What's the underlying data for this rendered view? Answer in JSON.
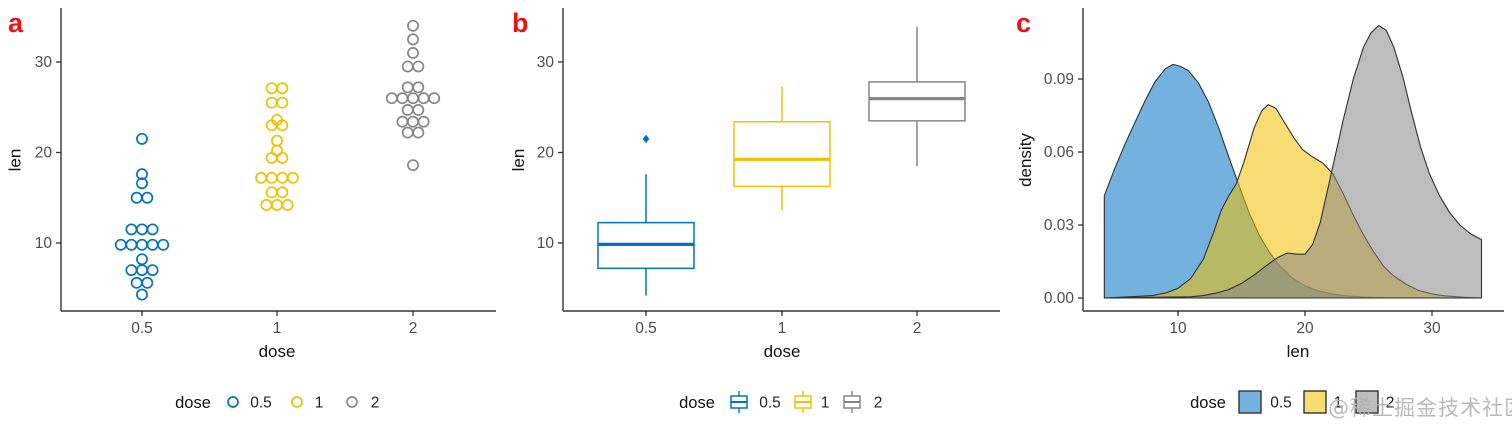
{
  "figure": {
    "watermark": "@稀土掘金技术社区",
    "label_color": "#ee1111",
    "axis_line_color": "#333333",
    "tick_label_color": "#4d4d4d",
    "axis_title_color": "#111111"
  },
  "chart_data": [
    {
      "panel_label": "a",
      "type": "dotplot",
      "xlabel": "dose",
      "ylabel": "len",
      "x_categories": [
        "0.5",
        "1",
        "2"
      ],
      "y_ticks": [
        {
          "v": 10,
          "t": "10"
        },
        {
          "v": 20,
          "t": "20"
        },
        {
          "v": 30,
          "t": "30"
        }
      ],
      "ylim": [
        2.5,
        36
      ],
      "legend": {
        "title": "dose",
        "position": "bottom",
        "items": [
          {
            "label": "0.5",
            "color": "#0073C2"
          },
          {
            "label": "1",
            "color": "#EFC000"
          },
          {
            "label": "2",
            "color": "#868686"
          }
        ]
      },
      "series": [
        {
          "name": "0.5",
          "color": "#0073C2",
          "stacks": [
            [
              21.5,
              1
            ],
            [
              17.6,
              1
            ],
            [
              16.6,
              1
            ],
            [
              15.0,
              2
            ],
            [
              11.5,
              3
            ],
            [
              9.8,
              5
            ],
            [
              8.2,
              1
            ],
            [
              7.0,
              3
            ],
            [
              5.6,
              2
            ],
            [
              4.3,
              1
            ]
          ]
        },
        {
          "name": "1",
          "color": "#EFC000",
          "stacks": [
            [
              27.1,
              2
            ],
            [
              25.5,
              2
            ],
            [
              23.6,
              1
            ],
            [
              23.0,
              2
            ],
            [
              21.3,
              1
            ],
            [
              20.2,
              1
            ],
            [
              19.4,
              2
            ],
            [
              17.2,
              4
            ],
            [
              15.6,
              2
            ],
            [
              14.2,
              3
            ]
          ]
        },
        {
          "name": "2",
          "color": "#868686",
          "stacks": [
            [
              34.0,
              1
            ],
            [
              32.5,
              1
            ],
            [
              31.0,
              1
            ],
            [
              29.5,
              2
            ],
            [
              27.2,
              2
            ],
            [
              26.0,
              5
            ],
            [
              24.7,
              2
            ],
            [
              23.4,
              3
            ],
            [
              22.2,
              2
            ],
            [
              18.6,
              1
            ]
          ]
        }
      ]
    },
    {
      "panel_label": "b",
      "type": "boxplot",
      "xlabel": "dose",
      "ylabel": "len",
      "x_categories": [
        "0.5",
        "1",
        "2"
      ],
      "y_ticks": [
        {
          "v": 10,
          "t": "10"
        },
        {
          "v": 20,
          "t": "20"
        },
        {
          "v": 30,
          "t": "30"
        }
      ],
      "ylim": [
        2.5,
        36
      ],
      "legend": {
        "title": "dose",
        "position": "bottom",
        "items": [
          {
            "label": "0.5",
            "color": "#0073C2"
          },
          {
            "label": "1",
            "color": "#EFC000"
          },
          {
            "label": "2",
            "color": "#868686"
          }
        ]
      },
      "series": [
        {
          "name": "0.5",
          "color": "#0073C2",
          "whisker_low": 4.2,
          "q1": 7.2,
          "median": 9.85,
          "q3": 12.25,
          "whisker_high": 17.6,
          "outliers": [
            21.5
          ]
        },
        {
          "name": "1",
          "color": "#EFC000",
          "whisker_low": 13.6,
          "q1": 16.25,
          "median": 19.25,
          "q3": 23.4,
          "whisker_high": 27.3,
          "outliers": []
        },
        {
          "name": "2",
          "color": "#868686",
          "whisker_low": 18.5,
          "q1": 23.5,
          "median": 25.95,
          "q3": 27.8,
          "whisker_high": 33.9,
          "outliers": []
        }
      ]
    },
    {
      "panel_label": "c",
      "type": "density",
      "xlabel": "len",
      "ylabel": "density",
      "x_ticks": [
        {
          "v": 10,
          "t": "10"
        },
        {
          "v": 20,
          "t": "20"
        },
        {
          "v": 30,
          "t": "30"
        }
      ],
      "y_ticks": [
        {
          "v": 0,
          "t": "0.00"
        },
        {
          "v": 0.03,
          "t": "0.03"
        },
        {
          "v": 0.06,
          "t": "0.06"
        },
        {
          "v": 0.09,
          "t": "0.09"
        }
      ],
      "xlim": [
        4.2,
        33.9
      ],
      "ylim": [
        0,
        0.118
      ],
      "fill_opacity": 0.55,
      "legend": {
        "title": "dose",
        "position": "bottom",
        "items": [
          {
            "label": "0.5",
            "color": "#0073C2"
          },
          {
            "label": "1",
            "color": "#EFC000"
          },
          {
            "label": "2",
            "color": "#868686"
          }
        ]
      },
      "series": [
        {
          "name": "0.5",
          "color": "#0073C2",
          "points": [
            [
              4.2,
              0.042
            ],
            [
              5,
              0.053
            ],
            [
              5.8,
              0.063
            ],
            [
              6.6,
              0.072
            ],
            [
              7.4,
              0.081
            ],
            [
              8.2,
              0.089
            ],
            [
              9,
              0.0942
            ],
            [
              9.6,
              0.096
            ],
            [
              10.2,
              0.0952
            ],
            [
              10.8,
              0.0935
            ],
            [
              11.6,
              0.0885
            ],
            [
              12.4,
              0.0805
            ],
            [
              13.2,
              0.07
            ],
            [
              14,
              0.058
            ],
            [
              14.8,
              0.0462
            ],
            [
              15.6,
              0.035
            ],
            [
              16.4,
              0.0258
            ],
            [
              17.2,
              0.0188
            ],
            [
              18,
              0.0132
            ],
            [
              19,
              0.0082
            ],
            [
              20,
              0.005
            ],
            [
              21,
              0.003
            ],
            [
              22,
              0.0018
            ],
            [
              23,
              0.001
            ],
            [
              24.5,
              0.0004
            ],
            [
              26.5,
              0.0001
            ],
            [
              33.9,
              0
            ]
          ]
        },
        {
          "name": "1",
          "color": "#EFC000",
          "points": [
            [
              4.2,
              0
            ],
            [
              8,
              0.001
            ],
            [
              9,
              0.002
            ],
            [
              10,
              0.004
            ],
            [
              11,
              0.008
            ],
            [
              12,
              0.016
            ],
            [
              12.8,
              0.027
            ],
            [
              13.4,
              0.036
            ],
            [
              14,
              0.042
            ],
            [
              14.6,
              0.047
            ],
            [
              15.2,
              0.056
            ],
            [
              16,
              0.07
            ],
            [
              16.6,
              0.077
            ],
            [
              17.1,
              0.0795
            ],
            [
              17.7,
              0.078
            ],
            [
              18.4,
              0.072
            ],
            [
              19.1,
              0.066
            ],
            [
              19.8,
              0.061
            ],
            [
              20.6,
              0.058
            ],
            [
              21.4,
              0.0555
            ],
            [
              22.2,
              0.051
            ],
            [
              23,
              0.043
            ],
            [
              23.8,
              0.034
            ],
            [
              24.6,
              0.026
            ],
            [
              25.4,
              0.019
            ],
            [
              26.2,
              0.013
            ],
            [
              27,
              0.009
            ],
            [
              28,
              0.0055
            ],
            [
              29,
              0.003
            ],
            [
              30,
              0.0017
            ],
            [
              31,
              0.0009
            ],
            [
              32.5,
              0.0003
            ],
            [
              33.9,
              0
            ]
          ]
        },
        {
          "name": "2",
          "color": "#868686",
          "points": [
            [
              4.2,
              0
            ],
            [
              11,
              0.0005
            ],
            [
              12,
              0.001
            ],
            [
              13,
              0.002
            ],
            [
              14,
              0.0035
            ],
            [
              15,
              0.006
            ],
            [
              16,
              0.0095
            ],
            [
              17,
              0.0135
            ],
            [
              17.8,
              0.0165
            ],
            [
              18.6,
              0.0185
            ],
            [
              19.4,
              0.018
            ],
            [
              20,
              0.018
            ],
            [
              20.6,
              0.022
            ],
            [
              21.2,
              0.031
            ],
            [
              21.8,
              0.045
            ],
            [
              22.4,
              0.059
            ],
            [
              23,
              0.073
            ],
            [
              23.8,
              0.09
            ],
            [
              24.6,
              0.103
            ],
            [
              25.2,
              0.109
            ],
            [
              25.8,
              0.112
            ],
            [
              26.4,
              0.11
            ],
            [
              27,
              0.103
            ],
            [
              27.7,
              0.091
            ],
            [
              28.4,
              0.076
            ],
            [
              29.1,
              0.062
            ],
            [
              29.8,
              0.051
            ],
            [
              30.6,
              0.042
            ],
            [
              31.4,
              0.035
            ],
            [
              32.2,
              0.03
            ],
            [
              33,
              0.0265
            ],
            [
              33.9,
              0.024
            ]
          ]
        }
      ]
    }
  ]
}
